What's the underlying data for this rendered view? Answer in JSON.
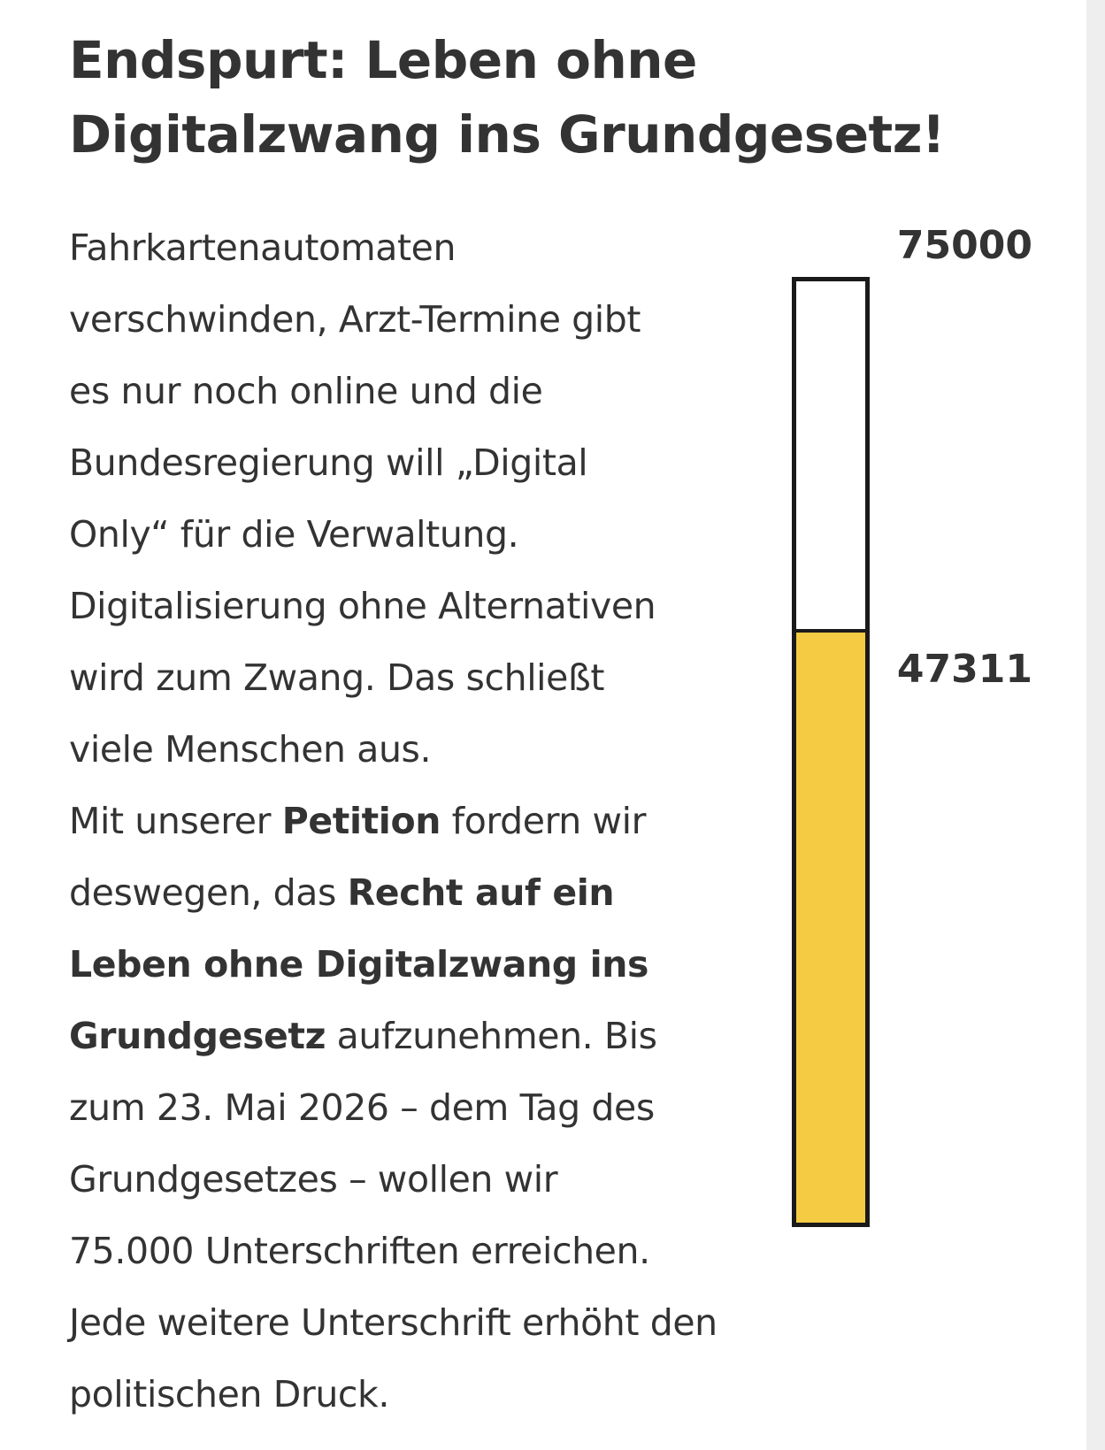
{
  "title": "Endspurt: Leben ohne Digitalzwang ins Grundgesetz!",
  "body": {
    "line_1": "Fahrkartenautomaten",
    "line_2": "verschwinden, Arzt-Termine gibt",
    "line_3": "es nur noch online und die",
    "line_4": "Bundesregierung will „Digital",
    "line_5": "Only“ für die Verwaltung.",
    "line_6": "Digitalisierung ohne Alternativen",
    "line_7": "wird zum Zwang. Das schließt",
    "line_8": "viele Menschen aus.",
    "line_9_a": "Mit unserer ",
    "line_9_b": "Petition",
    "line_9_c": " fordern wir",
    "line_10_a": "deswegen, das ",
    "line_10_b": "Recht auf ein",
    "line_11": "Leben ohne Digitalzwang ins",
    "line_12_a": "Grundgesetz",
    "line_12_b": " aufzunehmen. Bis",
    "line_13": "zum 23. Mai 2026 – dem Tag des",
    "line_14": "Grundgesetzes – wollen wir",
    "line_15": "75.000 Unterschriften erreichen.",
    "line_16": "Jede weitere Unterschrift erhöht den",
    "line_17": "politischen Druck."
  },
  "progress": {
    "goal_label": "75000",
    "current_label": "47311",
    "goal": 75000,
    "current": 47311,
    "fill_color": "#f6cb44",
    "border_color": "#1a1a1a"
  }
}
